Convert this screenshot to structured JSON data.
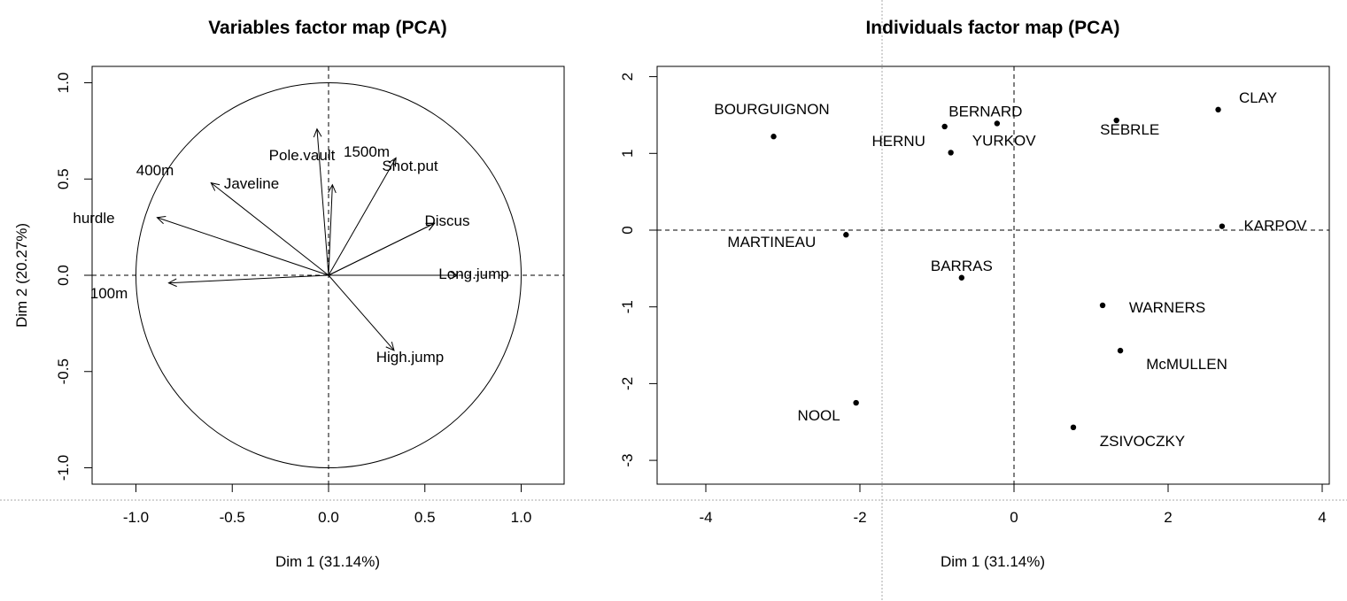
{
  "chart_data": [
    {
      "type": "scatter",
      "subtype": "pca-variables-correlation-circle",
      "title": "Variables factor map (PCA)",
      "xlabel": "Dim 1 (31.14%)",
      "ylabel": "Dim 2 (20.27%)",
      "xlim": [
        -1.2,
        1.2
      ],
      "ylim": [
        -1.08,
        1.08
      ],
      "xticks": [
        "-1.0",
        "-0.5",
        "0.0",
        "0.5",
        "1.0"
      ],
      "yticks": [
        "-1.0",
        "-0.5",
        "0.0",
        "0.5",
        "1.0"
      ],
      "reference_lines": "dashed at x=0 and y=0",
      "unit_circle": true,
      "variables": [
        {
          "name": "Pole.vault",
          "x": -0.06,
          "y": 0.76
        },
        {
          "name": "Javeline",
          "x": 0.02,
          "y": 0.47
        },
        {
          "name": "1500m",
          "x": 0.35,
          "y": 0.61
        },
        {
          "name": "Shot.put",
          "x": 0.55,
          "y": 0.27
        },
        {
          "name": "Discus",
          "x": 0.55,
          "y": 0.27
        },
        {
          "name": "400m",
          "x": -0.61,
          "y": 0.48
        },
        {
          "name": "hurdle",
          "x": -0.89,
          "y": 0.3
        },
        {
          "name": "100m",
          "x": -0.83,
          "y": -0.04
        },
        {
          "name": "Long.jump",
          "x": 0.67,
          "y": 0.0
        },
        {
          "name": "High.jump",
          "x": 0.34,
          "y": -0.39
        }
      ]
    },
    {
      "type": "scatter",
      "subtype": "pca-individuals",
      "title": "Individuals factor map (PCA)",
      "xlabel": "Dim 1 (31.14%)",
      "ylabel": "",
      "xlim": [
        -4.5,
        4.0
      ],
      "ylim": [
        -3.3,
        2.2
      ],
      "xticks": [
        "-4",
        "-2",
        "0",
        "2",
        "4"
      ],
      "yticks": [
        "-3",
        "-2",
        "-1",
        "0",
        "1",
        "2"
      ],
      "reference_lines": "dashed at x=0 and y=0",
      "points": [
        {
          "name": "CLAY",
          "x": 2.65,
          "y": 1.57
        },
        {
          "name": "SEBRLE",
          "x": 1.33,
          "y": 1.43
        },
        {
          "name": "BERNARD",
          "x": -0.22,
          "y": 1.39
        },
        {
          "name": "HERNU",
          "x": -0.9,
          "y": 1.35
        },
        {
          "name": "YURKOV",
          "x": -0.82,
          "y": 1.01
        },
        {
          "name": "BOURGUIGNON",
          "x": -3.12,
          "y": 1.22
        },
        {
          "name": "KARPOV",
          "x": 2.7,
          "y": 0.05
        },
        {
          "name": "MARTINEAU",
          "x": -2.18,
          "y": -0.06
        },
        {
          "name": "BARRAS",
          "x": -0.68,
          "y": -0.62
        },
        {
          "name": "WARNERS",
          "x": 1.15,
          "y": -0.98
        },
        {
          "name": "McMULLEN",
          "x": 1.38,
          "y": -1.57
        },
        {
          "name": "NOOL",
          "x": -2.05,
          "y": -2.25
        },
        {
          "name": "ZSIVOCZKY",
          "x": 0.77,
          "y": -2.57
        }
      ]
    }
  ]
}
